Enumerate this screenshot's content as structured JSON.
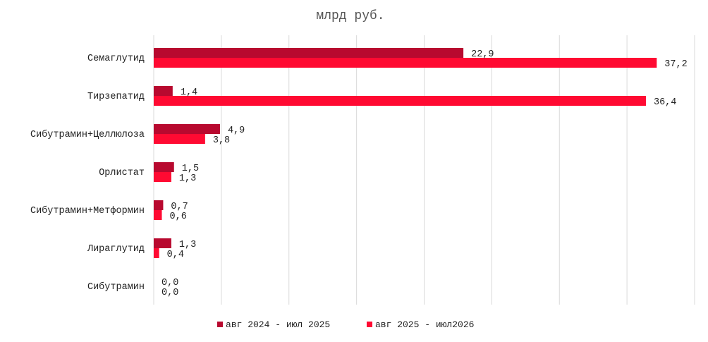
{
  "chart_data": {
    "type": "bar",
    "orientation": "horizontal",
    "title": "млрд руб.",
    "categories": [
      "Семаглутид",
      "Тирзепатид",
      "Сибутрамин+Целлюлоза",
      "Орлистат",
      "Сибутрамин+Метформин",
      "Лираглутид",
      "Сибутрамин"
    ],
    "series": [
      {
        "name": "авг 2024 - июл 2025",
        "color": "#b8092f",
        "values": [
          22.9,
          1.4,
          4.9,
          1.5,
          0.7,
          1.3,
          0.0
        ],
        "labels": [
          "22,9",
          "1,4",
          "4,9",
          "1,5",
          "0,7",
          "1,3",
          "0,0"
        ]
      },
      {
        "name": "авг 2025 - июл2026",
        "color": "#ff0a32",
        "values": [
          37.2,
          36.4,
          3.8,
          1.3,
          0.6,
          0.4,
          0.0
        ],
        "labels": [
          "37,2",
          "36,4",
          "3,8",
          "1,3",
          "0,6",
          "0,4",
          "0,0"
        ]
      }
    ],
    "xlim": [
      0,
      40
    ],
    "grid": true,
    "legend": "bottom"
  }
}
